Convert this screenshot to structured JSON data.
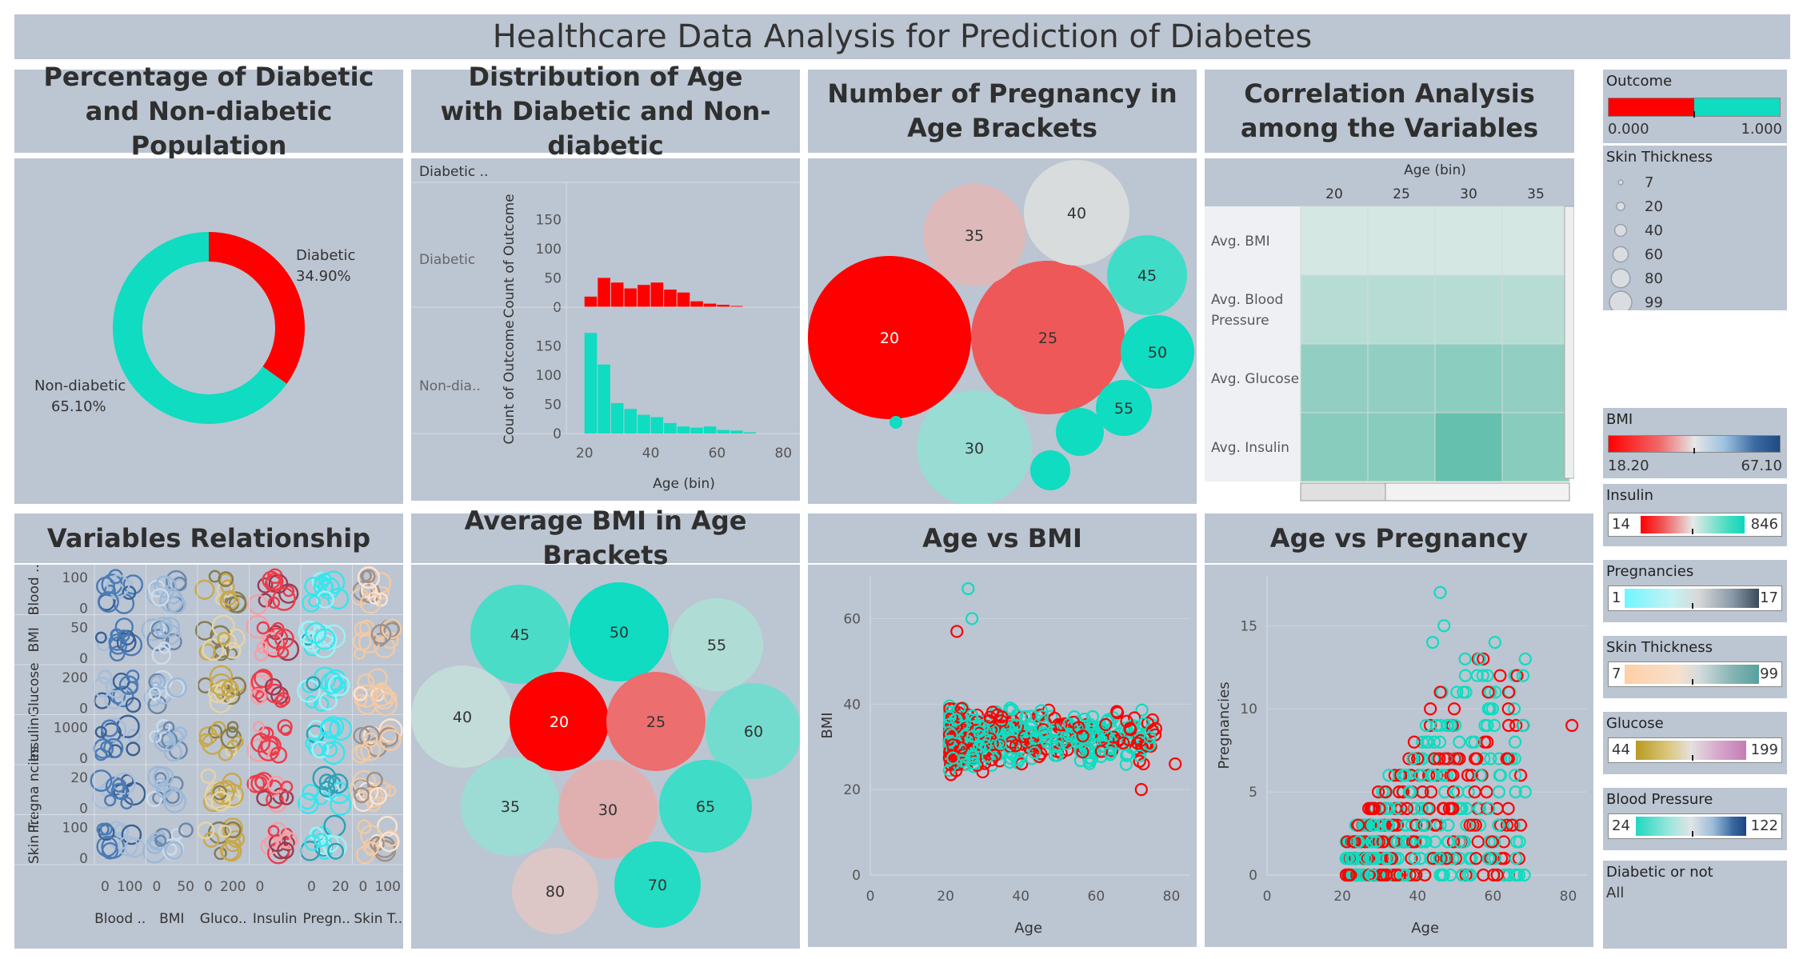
{
  "header": {
    "title": "Healthcare Data Analysis for Prediction of Diabetes"
  },
  "titles": {
    "donut": "Percentage of Diabetic and Non-diabetic Population",
    "age_dist": "Distribution of Age with Diabetic and Non-diabetic",
    "preg_brackets": "Number of Pregnancy in Age Brackets",
    "correlation": "Correlation Analysis among the Variables",
    "variables": "Variables Relationship",
    "bmi_brackets": "Average BMI in Age Brackets",
    "age_bmi": "Age vs BMI",
    "age_preg": "Age vs Pregnancy"
  },
  "colors": {
    "diabetic": "#ff0000",
    "non_diabetic": "#0fdcc0",
    "panel": "#bcc5d2"
  },
  "legends": {
    "outcome": {
      "title": "Outcome",
      "min": "0.000",
      "max": "1.000"
    },
    "skin_size": {
      "title": "Skin Thickness",
      "items": [
        "7",
        "20",
        "40",
        "60",
        "80",
        "99"
      ]
    },
    "bmi": {
      "title": "BMI",
      "min": "18.20",
      "max": "67.10"
    },
    "insulin": {
      "title": "Insulin",
      "min": "14",
      "max": "846"
    },
    "pregnancies": {
      "title": "Pregnancies",
      "min": "1",
      "max": "17"
    },
    "skin": {
      "title": "Skin Thickness",
      "min": "7",
      "max": "99"
    },
    "glucose": {
      "title": "Glucose",
      "min": "44",
      "max": "199"
    },
    "blood_pressure": {
      "title": "Blood Pressure",
      "min": "24",
      "max": "122"
    },
    "filter": {
      "title": "Diabetic or not",
      "value": "All"
    }
  },
  "chart_data": [
    {
      "id": "donut",
      "type": "pie",
      "labels": [
        "Diabetic",
        "Non-diabetic"
      ],
      "values": [
        34.9,
        65.1
      ],
      "value_labels": [
        "34.90%",
        "65.10%"
      ]
    },
    {
      "id": "age_dist",
      "type": "bar",
      "xlabel": "Age (bin)",
      "ylabel": "Count of Outcome",
      "panel_header": "Diabetic ..",
      "facets": [
        "Diabetic",
        "Non-dia.."
      ],
      "x_ticks": [
        "20",
        "40",
        "60",
        "80"
      ],
      "y_ticks": [
        "0",
        "50",
        "100",
        "150"
      ],
      "ylim": [
        0,
        175
      ],
      "bin_start": [
        20,
        24,
        28,
        32,
        36,
        40,
        44,
        48,
        52,
        56,
        60,
        64,
        68
      ],
      "series": [
        {
          "name": "Diabetic",
          "values": [
            18,
            50,
            42,
            32,
            38,
            42,
            30,
            25,
            10,
            6,
            4,
            2,
            0
          ]
        },
        {
          "name": "Non-dia..",
          "values": [
            172,
            118,
            52,
            42,
            32,
            28,
            18,
            12,
            10,
            12,
            6,
            5,
            2
          ]
        }
      ]
    },
    {
      "id": "preg_brackets",
      "type": "bubble",
      "labels": [
        "20",
        "25",
        "30",
        "35",
        "40",
        "45",
        "50",
        "55",
        "",
        "",
        ""
      ],
      "values": [
        1.0,
        0.8,
        0.34,
        0.58,
        0.5,
        0.12,
        0.0,
        0.0,
        0.0,
        0.0,
        0.0
      ],
      "sizes": [
        100,
        90,
        70,
        62,
        65,
        48,
        45,
        35,
        30,
        25,
        8
      ]
    },
    {
      "id": "correlation",
      "type": "heatmap",
      "x_title": "Age (bin)",
      "columns": [
        "20",
        "25",
        "30",
        "35"
      ],
      "rows": [
        "Avg. BMI",
        "Avg. Blood Pressure",
        "Avg. Glucose",
        "Avg. Insulin"
      ],
      "values": [
        [
          0.1,
          0.1,
          0.1,
          0.1
        ],
        [
          0.3,
          0.3,
          0.3,
          0.3
        ],
        [
          0.55,
          0.55,
          0.6,
          0.55
        ],
        [
          0.62,
          0.62,
          0.85,
          0.62
        ]
      ]
    },
    {
      "id": "variables",
      "type": "scatter",
      "rows": [
        {
          "label": "Blood ..",
          "ticks": [
            "100",
            "0"
          ]
        },
        {
          "label": "BMI",
          "ticks": [
            "50",
            "0"
          ]
        },
        {
          "label": "Glucose",
          "ticks": [
            "200",
            "0"
          ]
        },
        {
          "label": "Insulin",
          "ticks": [
            "1000",
            "0"
          ]
        },
        {
          "label": "Pregna ncies",
          "ticks": [
            "20",
            "0"
          ]
        },
        {
          "label": "Skin T..",
          "ticks": [
            "100",
            "0"
          ]
        }
      ],
      "columns": [
        "Blood ..",
        "BMI",
        "Gluco..",
        "Insulin",
        "Pregn..",
        "Skin T.."
      ],
      "column_ticks": [
        [
          "0",
          "100"
        ],
        [
          "0",
          "50"
        ],
        [
          "0",
          "200"
        ],
        [
          "0",
          ""
        ],
        [
          "0",
          "20"
        ],
        [
          "0",
          "100"
        ]
      ],
      "column_colors": [
        "#4b7bb5",
        "#9bb9d9",
        "#c9a84a",
        "#ee3b4a",
        "#35e6ee",
        "#f2c9a4"
      ]
    },
    {
      "id": "bmi_brackets",
      "type": "bubble",
      "labels": [
        "45",
        "50",
        "55",
        "40",
        "20",
        "25",
        "60",
        "35",
        "30",
        "65",
        "80",
        "70"
      ],
      "values": [
        0.15,
        0.0,
        0.4,
        0.45,
        1.0,
        0.75,
        0.25,
        0.35,
        0.6,
        0.12,
        0.55,
        0.05
      ]
    },
    {
      "id": "age_bmi",
      "type": "scatter",
      "xlabel": "Age",
      "ylabel": "BMI",
      "x_ticks": [
        "0",
        "20",
        "40",
        "60",
        "80"
      ],
      "y_ticks": [
        "0",
        "20",
        "40",
        "60"
      ],
      "xlim": [
        0,
        85
      ],
      "ylim": [
        0,
        70
      ]
    },
    {
      "id": "age_preg",
      "type": "scatter",
      "xlabel": "Age",
      "ylabel": "Pregnancies",
      "x_ticks": [
        "0",
        "20",
        "40",
        "60",
        "80"
      ],
      "y_ticks": [
        "0",
        "5",
        "10",
        "15"
      ],
      "xlim": [
        0,
        85
      ],
      "ylim": [
        0,
        18
      ]
    }
  ]
}
